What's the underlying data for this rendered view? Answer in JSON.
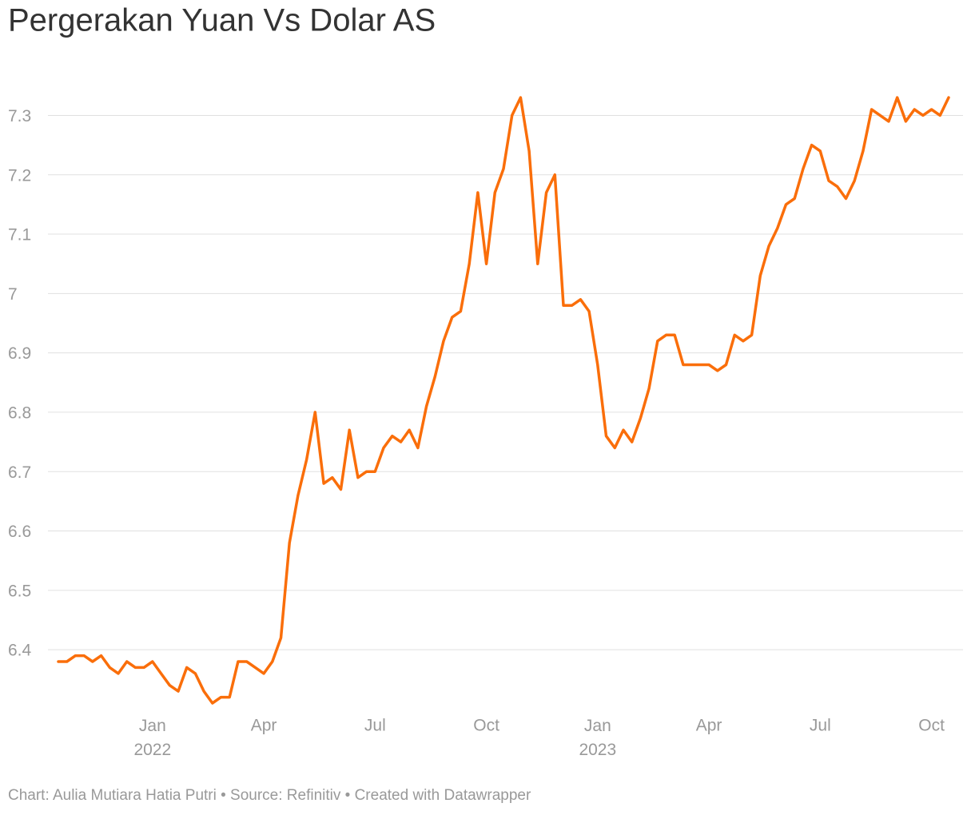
{
  "chart_data": {
    "type": "line",
    "title": "Pergerakan Yuan Vs Dolar AS",
    "credit": "Chart: Aulia Mutiara Hatia Putri • Source: Refinitiv • Created with Datawrapper",
    "categories": [
      null,
      null,
      null,
      null,
      null,
      null,
      null,
      null,
      null,
      null,
      null,
      "Jan 2022",
      null,
      null,
      null,
      null,
      null,
      null,
      null,
      null,
      null,
      null,
      null,
      null,
      "Apr",
      null,
      null,
      null,
      null,
      null,
      null,
      null,
      null,
      null,
      null,
      null,
      null,
      "Jul",
      null,
      null,
      null,
      null,
      null,
      null,
      null,
      null,
      null,
      null,
      null,
      null,
      "Oct",
      null,
      null,
      null,
      null,
      null,
      null,
      null,
      null,
      null,
      null,
      null,
      null,
      "Jan 2023",
      null,
      null,
      null,
      null,
      null,
      null,
      null,
      null,
      null,
      null,
      null,
      null,
      "Apr",
      null,
      null,
      null,
      null,
      null,
      null,
      null,
      null,
      null,
      null,
      null,
      null,
      "Jul",
      null,
      null,
      null,
      null,
      null,
      null,
      null,
      null,
      null,
      null,
      null,
      null,
      "Oct",
      null,
      null
    ],
    "values": [
      6.38,
      6.38,
      6.39,
      6.39,
      6.38,
      6.39,
      6.37,
      6.36,
      6.38,
      6.37,
      6.37,
      6.38,
      6.36,
      6.34,
      6.33,
      6.37,
      6.36,
      6.33,
      6.31,
      6.32,
      6.32,
      6.38,
      6.38,
      6.37,
      6.36,
      6.38,
      6.42,
      6.58,
      6.66,
      6.72,
      6.8,
      6.68,
      6.69,
      6.67,
      6.77,
      6.69,
      6.7,
      6.7,
      6.74,
      6.76,
      6.75,
      6.77,
      6.74,
      6.81,
      6.86,
      6.92,
      6.96,
      6.97,
      7.05,
      7.17,
      7.05,
      7.17,
      7.21,
      7.3,
      7.33,
      7.24,
      7.05,
      7.17,
      7.2,
      6.98,
      6.98,
      6.99,
      6.97,
      6.88,
      6.76,
      6.74,
      6.77,
      6.75,
      6.79,
      6.84,
      6.92,
      6.93,
      6.93,
      6.88,
      6.88,
      6.88,
      6.88,
      6.87,
      6.88,
      6.93,
      6.92,
      6.93,
      7.03,
      7.08,
      7.11,
      7.15,
      7.16,
      7.21,
      7.25,
      7.24,
      7.19,
      7.18,
      7.16,
      7.19,
      7.24,
      7.31,
      7.3,
      7.29,
      7.33,
      7.29,
      7.31,
      7.3,
      7.31,
      7.3,
      7.33
    ],
    "color": "#fa6e0a",
    "ylim": [
      6.31,
      7.38
    ],
    "yticks": [
      6.4,
      6.5,
      6.6,
      6.7,
      6.8,
      6.9,
      7.0,
      7.1,
      7.2,
      7.3
    ],
    "grid": true
  }
}
